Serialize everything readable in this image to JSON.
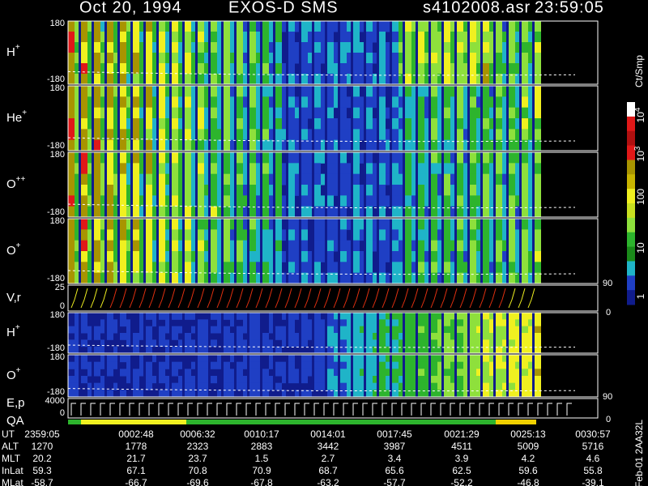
{
  "header": {
    "date": "Oct 20, 1994",
    "instrument": "EXOS-D SMS",
    "file": "s4102008.asr",
    "time": "23:59:05"
  },
  "panels": [
    {
      "label": "H",
      "sup": "+",
      "ticks": [
        "180",
        "-180"
      ]
    },
    {
      "label": "He",
      "sup": "+",
      "ticks": [
        "180",
        "-180"
      ]
    },
    {
      "label": "O",
      "sup": "++",
      "ticks": [
        "180",
        "-180"
      ]
    },
    {
      "label": "O",
      "sup": "+",
      "ticks": [
        "180",
        "-180"
      ]
    },
    {
      "label": "V,r",
      "ticks": [
        "25",
        "0"
      ],
      "right_ticks": [
        "90",
        "0"
      ]
    },
    {
      "label": "H",
      "sup": "+",
      "ticks": [
        "180",
        "-180"
      ]
    },
    {
      "label": "O",
      "sup": "+",
      "ticks": [
        "180",
        "-180"
      ]
    },
    {
      "label": "E,p",
      "ticks": [
        "4000",
        "0"
      ],
      "right_ticks": [
        "90",
        "0"
      ]
    }
  ],
  "qa_label": "QA",
  "colorbar": {
    "unit": "Ct/Smp",
    "ticks": [
      {
        "base": "10",
        "sup": "4"
      },
      {
        "base": "10",
        "sup": "3"
      },
      {
        "base": "100"
      },
      {
        "base": "10"
      },
      {
        "base": "1"
      }
    ]
  },
  "table": {
    "rows": [
      {
        "label": "UT",
        "cells": [
          "2359:05",
          "0002:48",
          "0006:32",
          "0010:17",
          "0014:01",
          "0017:45",
          "0021:29",
          "0025:13",
          "0030:57"
        ]
      },
      {
        "label": "ALT",
        "cells": [
          "1270",
          "1778",
          "2323",
          "2883",
          "3442",
          "3987",
          "4511",
          "5009",
          "5716"
        ]
      },
      {
        "label": "MLT",
        "cells": [
          "20.2",
          "21.7",
          "23.7",
          "1.5",
          "2.7",
          "3.4",
          "3.9",
          "4.2",
          "4.6"
        ]
      },
      {
        "label": "InLat",
        "cells": [
          "59.3",
          "67.1",
          "70.8",
          "70.9",
          "68.7",
          "65.6",
          "62.5",
          "59.6",
          "55.8"
        ]
      },
      {
        "label": "MLat",
        "cells": [
          "-58.7",
          "-66.7",
          "-69.6",
          "-67.8",
          "-63.2",
          "-57.7",
          "-52.2",
          "-46.8",
          "-39.1"
        ]
      }
    ]
  },
  "footer": "Feb-01 2AA32L"
}
